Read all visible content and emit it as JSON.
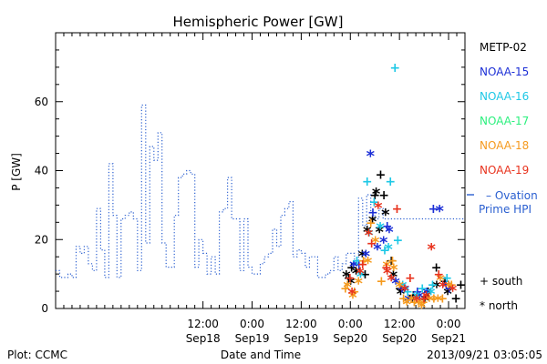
{
  "chart_data": {
    "type": "line",
    "title": "Hemispheric Power [GW]",
    "ylabel": "P [GW]",
    "xlabel": "Date and Time",
    "xlim": [
      "2013-09-17 00:00",
      "2013-09-21 04:00"
    ],
    "ylim": [
      0,
      80
    ],
    "yticks": [
      0,
      20,
      40,
      60
    ],
    "xticks": [
      {
        "at": "2013-09-18 12:00",
        "time": "12:00",
        "date": "Sep18"
      },
      {
        "at": "2013-09-19 00:00",
        "time": "0:00",
        "date": "Sep19"
      },
      {
        "at": "2013-09-19 12:00",
        "time": "12:00",
        "date": "Sep19"
      },
      {
        "at": "2013-09-20 00:00",
        "time": "0:00",
        "date": "Sep20"
      },
      {
        "at": "2013-09-20 12:00",
        "time": "12:00",
        "date": "Sep20"
      },
      {
        "at": "2013-09-21 00:00",
        "time": "0:00",
        "date": "Sep21"
      }
    ],
    "ovation": {
      "name": "Ovation Prime HPI",
      "color": "#2a5fd0",
      "x_hours": [
        0,
        1,
        2,
        3,
        4,
        5,
        6,
        7,
        8,
        9,
        10,
        11,
        12,
        13,
        14,
        15,
        16,
        17,
        18,
        19,
        20,
        21,
        22,
        23,
        24,
        25,
        26,
        27,
        28,
        29,
        30,
        31,
        32,
        33,
        34,
        35,
        36,
        37,
        38,
        39,
        40,
        41,
        42,
        43,
        44,
        45,
        46,
        47,
        48,
        49,
        50,
        51,
        52,
        53,
        54,
        55,
        56,
        57,
        58,
        59,
        60,
        61,
        62,
        63,
        64,
        65,
        66,
        67,
        68,
        69,
        70,
        71,
        72,
        73,
        74,
        75,
        76,
        77,
        78,
        79,
        80,
        81,
        82,
        83,
        84,
        85,
        86,
        87,
        88,
        89,
        90,
        91,
        92,
        93,
        94,
        95,
        96,
        97,
        98,
        99,
        100
      ],
      "values": [
        11,
        9,
        9,
        10,
        9,
        18,
        16,
        18,
        13,
        11,
        29,
        17,
        9,
        42,
        27,
        9,
        26,
        27,
        28,
        26,
        11,
        59,
        19,
        47,
        43,
        51,
        19,
        12,
        12,
        27,
        38,
        39,
        40,
        39,
        12,
        20,
        16,
        10,
        15,
        10,
        28,
        29,
        38,
        26,
        26,
        11,
        26,
        12,
        10,
        10,
        13,
        15,
        16,
        23,
        18,
        27,
        29,
        31,
        15,
        17,
        16,
        12,
        15,
        15,
        9,
        9,
        10,
        11,
        15,
        11,
        13,
        16,
        16,
        13,
        32,
        24,
        33,
        28,
        26,
        29,
        26,
        26,
        26,
        26,
        26,
        26,
        26,
        26,
        26,
        26,
        26,
        26,
        26,
        26,
        26,
        26,
        26,
        26,
        26,
        26,
        26
      ]
    },
    "legend_satellites": [
      {
        "name": "METP-02",
        "color": "#000000"
      },
      {
        "name": "NOAA-15",
        "color": "#1c2fd6"
      },
      {
        "name": "NOAA-16",
        "color": "#1ec8e6"
      },
      {
        "name": "NOAA-17",
        "color": "#2cf07e"
      },
      {
        "name": "NOAA-18",
        "color": "#f59a1e"
      },
      {
        "name": "NOAA-19",
        "color": "#e8331e"
      }
    ],
    "marker_legend": [
      {
        "symbol": "+",
        "label": "south"
      },
      {
        "symbol": "*",
        "label": "north"
      }
    ],
    "scatter": [
      {
        "sat": "METP-02",
        "hemi": "south",
        "points": [
          [
            71.6,
            9
          ],
          [
            72.3,
            12
          ],
          [
            75.6,
            10
          ],
          [
            78.0,
            33
          ],
          [
            79.4,
            39
          ],
          [
            80.2,
            33
          ],
          [
            82.0,
            14
          ],
          [
            84.1,
            6
          ],
          [
            87.4,
            4
          ],
          [
            91.0,
            5
          ],
          [
            93.0,
            12
          ],
          [
            95.1,
            8
          ],
          [
            97.8,
            3
          ],
          [
            99.0,
            7
          ]
        ]
      },
      {
        "sat": "METP-02",
        "hemi": "north",
        "points": [
          [
            71.0,
            10
          ],
          [
            72.1,
            8
          ],
          [
            73.4,
            11
          ],
          [
            74.9,
            16
          ],
          [
            76.1,
            23
          ],
          [
            77.4,
            26
          ],
          [
            78.3,
            34
          ],
          [
            79.1,
            23
          ],
          [
            80.6,
            28
          ],
          [
            82.5,
            10
          ],
          [
            84.3,
            5
          ],
          [
            87.1,
            3
          ],
          [
            90.2,
            3
          ],
          [
            93.1,
            7
          ],
          [
            95.8,
            5
          ]
        ]
      },
      {
        "sat": "NOAA-15",
        "hemi": "south",
        "points": [
          [
            74.1,
            13
          ],
          [
            77.5,
            28
          ],
          [
            81.0,
            24
          ],
          [
            84.6,
            6
          ],
          [
            88.4,
            5
          ],
          [
            92.3,
            29
          ],
          [
            96.2,
            6
          ]
        ]
      },
      {
        "sat": "NOAA-15",
        "hemi": "north",
        "points": [
          [
            72.8,
            13
          ],
          [
            75.8,
            16
          ],
          [
            76.9,
            45
          ],
          [
            78.6,
            18
          ],
          [
            80.1,
            20
          ],
          [
            81.5,
            23
          ],
          [
            83.1,
            8
          ],
          [
            85.4,
            6
          ],
          [
            86.2,
            3
          ],
          [
            88.9,
            4
          ],
          [
            90.7,
            5
          ],
          [
            93.8,
            29
          ],
          [
            95.4,
            7
          ]
        ]
      },
      {
        "sat": "NOAA-16",
        "hemi": "south",
        "points": [
          [
            73.6,
            14
          ],
          [
            76.1,
            37
          ],
          [
            77.8,
            31
          ],
          [
            80.4,
            17
          ],
          [
            81.8,
            37
          ],
          [
            82.9,
            70
          ],
          [
            83.6,
            20
          ],
          [
            86.0,
            5
          ],
          [
            89.6,
            6
          ],
          [
            92.1,
            7
          ],
          [
            95.6,
            9
          ]
        ]
      },
      {
        "sat": "NOAA-16",
        "hemi": "north",
        "points": [
          [
            74.5,
            10
          ],
          [
            76.6,
            22
          ],
          [
            79.3,
            24
          ],
          [
            81.3,
            18
          ],
          [
            84.8,
            7
          ],
          [
            88.1,
            4
          ],
          [
            91.7,
            5
          ]
        ]
      },
      {
        "sat": "NOAA-18",
        "hemi": "south",
        "points": [
          [
            70.8,
            6
          ],
          [
            73.0,
            5
          ],
          [
            75.2,
            14
          ],
          [
            77.0,
            25
          ],
          [
            79.6,
            8
          ],
          [
            82.3,
            14
          ],
          [
            85.0,
            3
          ],
          [
            87.6,
            2
          ],
          [
            89.8,
            2
          ],
          [
            92.4,
            3
          ],
          [
            94.5,
            3
          ],
          [
            96.7,
            7
          ]
        ]
      },
      {
        "sat": "NOAA-18",
        "hemi": "north",
        "points": [
          [
            71.3,
            7
          ],
          [
            72.6,
            4
          ],
          [
            74.0,
            8
          ],
          [
            76.3,
            14
          ],
          [
            78.1,
            20
          ],
          [
            80.9,
            13
          ],
          [
            82.6,
            12
          ],
          [
            84.0,
            7
          ],
          [
            85.8,
            2
          ],
          [
            86.9,
            3
          ],
          [
            88.6,
            2
          ],
          [
            89.4,
            1
          ],
          [
            91.3,
            3
          ],
          [
            93.4,
            3
          ],
          [
            94.0,
            9
          ],
          [
            96.0,
            7
          ]
        ]
      },
      {
        "sat": "NOAA-19",
        "hemi": "south",
        "points": [
          [
            71.9,
            9
          ],
          [
            75.0,
            13
          ],
          [
            77.2,
            19
          ],
          [
            80.8,
            12
          ],
          [
            83.4,
            29
          ],
          [
            86.6,
            9
          ],
          [
            90.0,
            3
          ],
          [
            93.6,
            10
          ]
        ]
      },
      {
        "sat": "NOAA-19",
        "hemi": "north",
        "points": [
          [
            72.4,
            5
          ],
          [
            74.4,
            11
          ],
          [
            76.5,
            22
          ],
          [
            78.8,
            30
          ],
          [
            81.0,
            11
          ],
          [
            82.0,
            9
          ],
          [
            85.2,
            6
          ],
          [
            88.2,
            3
          ],
          [
            90.5,
            4
          ],
          [
            91.8,
            18
          ],
          [
            94.6,
            7
          ],
          [
            97.0,
            6
          ]
        ]
      }
    ]
  },
  "footer": {
    "left": "Plot: CCMC",
    "center": "Date and Time",
    "right": "2013/09/21 03:05:05"
  }
}
